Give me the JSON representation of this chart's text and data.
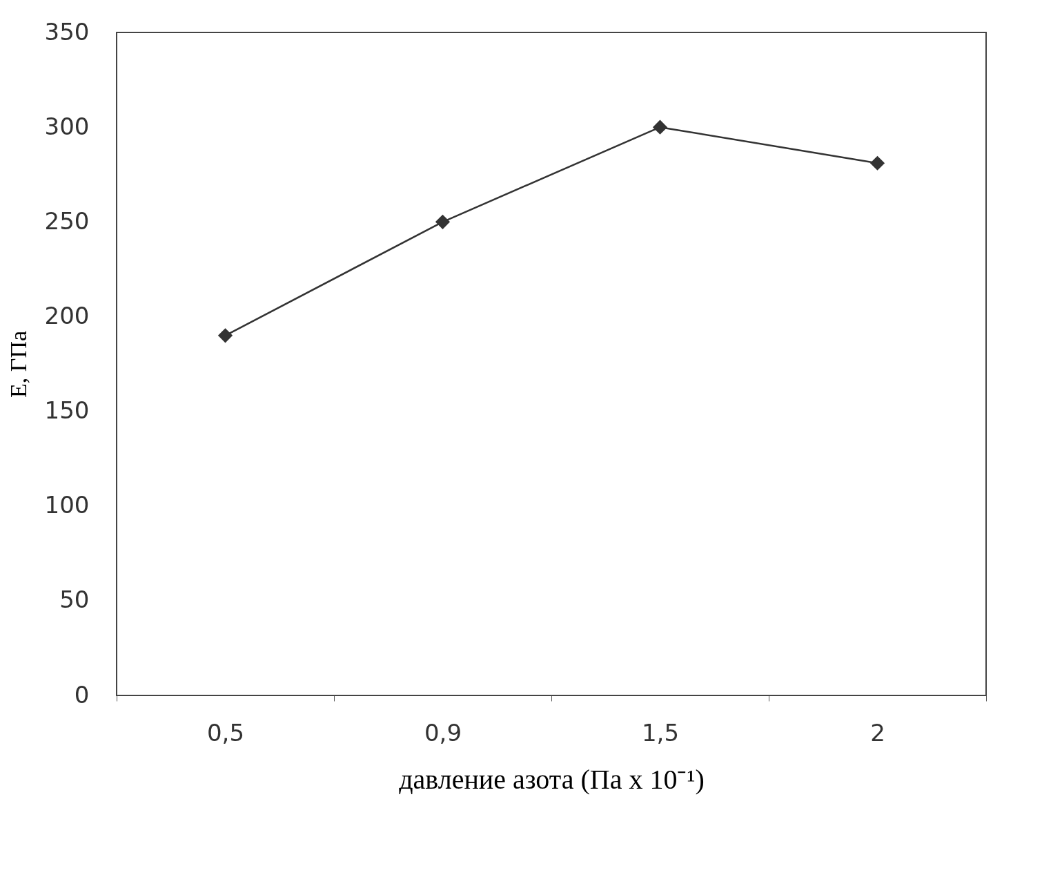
{
  "chart_data": {
    "type": "line",
    "xlabel": "давление азота (Па x 10⁻¹)",
    "ylabel": "E, ГПа",
    "categories": [
      "0,5",
      "0,9",
      "1,5",
      "2"
    ],
    "series": [
      {
        "color": "#333333",
        "values": [
          190,
          250,
          300,
          281
        ]
      }
    ],
    "ylim": [
      0,
      350
    ],
    "yticks": [
      0,
      50,
      100,
      150,
      200,
      250,
      300,
      350
    ],
    "marker": "diamond",
    "line_style": "solid",
    "grid": false
  }
}
